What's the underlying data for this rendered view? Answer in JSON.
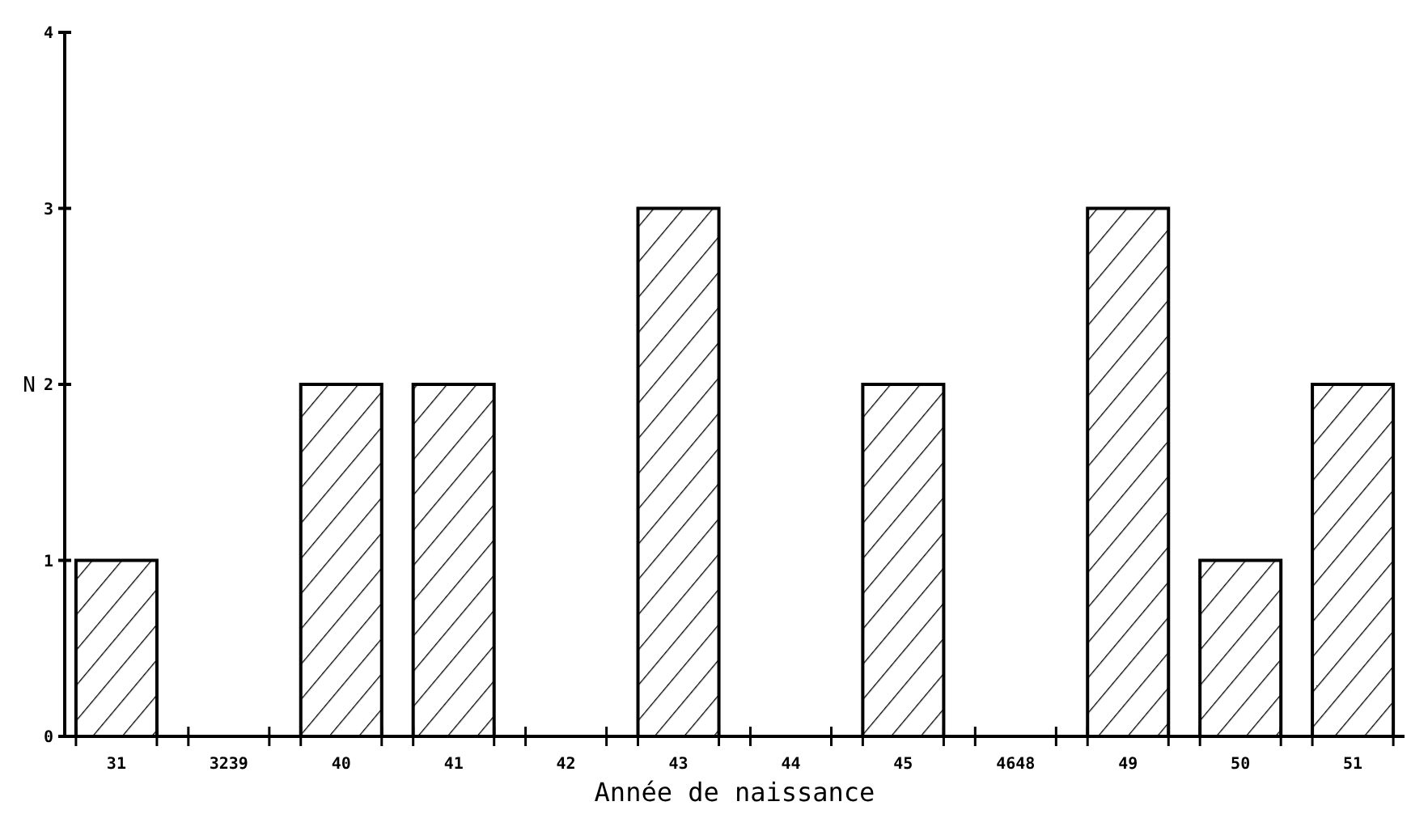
{
  "chart_data": {
    "type": "bar",
    "xlabel": "Année de naissance",
    "ylabel": "N",
    "categories": [
      "31",
      "3239",
      "40",
      "41",
      "42",
      "43",
      "44",
      "45",
      "4648",
      "49",
      "50",
      "51"
    ],
    "values": [
      1,
      0,
      2,
      2,
      0,
      3,
      0,
      2,
      0,
      3,
      1,
      2
    ],
    "color": "#000000",
    "ylim": [
      0,
      4
    ],
    "yticks": [
      0,
      1,
      2,
      3,
      4
    ],
    "grid": false
  }
}
